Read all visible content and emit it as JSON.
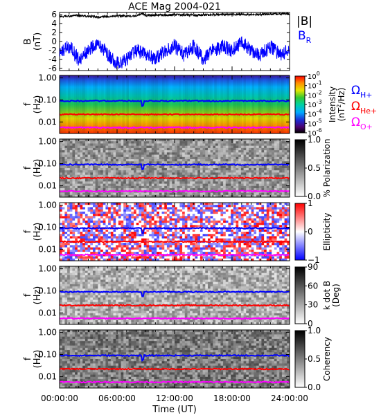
{
  "title": "ACE Mag 2004-021",
  "colors": {
    "btotal": "#000000",
    "br": "#0000ff",
    "h": "#0000ff",
    "he": "#ff0000",
    "o": "#ff00ff"
  },
  "x_axis": {
    "label": "Time (UT)",
    "ticks": [
      "00:00:00",
      "06:00:00",
      "12:00:00",
      "18:00:00",
      "24:00:00"
    ]
  },
  "panel_b": {
    "ylabel": "B",
    "yunit": "(nT)",
    "yticks": [
      "6",
      "4",
      "2",
      "0",
      "-2",
      "-4",
      "-6"
    ],
    "legend_btotal": "|B|",
    "legend_br": "B",
    "legend_br_sub": "R"
  },
  "spectral": {
    "ylabel": "f",
    "yunit": "(Hz)",
    "yticks": [
      "1.00",
      "0.10",
      "0.01"
    ]
  },
  "panels": [
    {
      "cbar_label": "Intensity",
      "cbar_unit": "(nT",
      "cbar_unit_sup": "2",
      "cbar_unit_end": "/Hz)",
      "cbar_ticks": [
        "10",
        "10",
        "10",
        "10",
        "10",
        "10",
        "10"
      ],
      "cbar_exps": [
        "0",
        "-1",
        "-2",
        "-3",
        "-4",
        "-5",
        "-6"
      ]
    },
    {
      "cbar_label": "% Polarization",
      "cbar_ticks": [
        "1.0",
        "0.5",
        "0.0"
      ]
    },
    {
      "cbar_label": "Ellipticity",
      "cbar_ticks": [
        "1",
        "0",
        "−1"
      ]
    },
    {
      "cbar_label": "k dot B",
      "cbar_label2": "(Deg)",
      "cbar_ticks": [
        "90",
        "60",
        "30",
        "0"
      ]
    },
    {
      "cbar_label": "Coherency",
      "cbar_ticks": [
        "1.0",
        "0.5",
        "0.0"
      ]
    }
  ],
  "gyro_legend": [
    {
      "symbol": "Ω",
      "sub": "H+"
    },
    {
      "symbol": "Ω",
      "sub": "He+"
    },
    {
      "symbol": "Ω",
      "sub": "O+"
    }
  ],
  "chart_data": {
    "type": "line",
    "title": "ACE Mag 2004-021",
    "x": {
      "label": "Time (UT)",
      "range": [
        0,
        24
      ],
      "ticks": [
        "00:00:00",
        "06:00:00",
        "12:00:00",
        "18:00:00",
        "24:00:00"
      ]
    },
    "series": [
      {
        "name": "|B|",
        "panel": "B",
        "x": [
          0,
          2,
          4,
          6,
          8,
          8.7,
          9,
          10,
          12,
          14,
          16,
          18,
          20,
          22,
          24
        ],
        "y": [
          5.6,
          5.8,
          5.5,
          5.7,
          5.7,
          6.3,
          5.8,
          5.9,
          6.0,
          5.9,
          6.0,
          6.1,
          6.0,
          6.1,
          6.2
        ]
      },
      {
        "name": "B",
        "panel": "B",
        "x": [
          0,
          1,
          2,
          3,
          4,
          5,
          6,
          7,
          8,
          9,
          10,
          11,
          12,
          13,
          14,
          15,
          16,
          17,
          18,
          19,
          20,
          21,
          22,
          23,
          24
        ],
        "y": [
          -3,
          -1,
          -4,
          -2,
          0,
          -3,
          -5,
          -4,
          -2,
          -3,
          -4,
          -2,
          -1,
          -3,
          -1,
          -4,
          -2,
          -1,
          -2,
          0,
          -2,
          -3,
          -1,
          -3,
          -2
        ]
      }
    ],
    "panels": [
      {
        "name": "B",
        "ylabel": "B (nT)",
        "yrange": [
          -6.5,
          6.5
        ]
      },
      {
        "name": "Intensity",
        "ylabel": "f (Hz)",
        "yscale": "log",
        "yrange": [
          0.003,
          1.3
        ],
        "colorbar": "Intensity (nT^2/Hz)",
        "crange": [
          1e-06,
          1
        ]
      },
      {
        "name": "% Polarization",
        "ylabel": "f (Hz)",
        "yscale": "log",
        "yrange": [
          0.003,
          1.3
        ],
        "colorbar": "% Polarization",
        "crange": [
          0,
          1
        ]
      },
      {
        "name": "Ellipticity",
        "ylabel": "f (Hz)",
        "yscale": "log",
        "yrange": [
          0.003,
          1.3
        ],
        "colorbar": "Ellipticity",
        "crange": [
          -1,
          1
        ]
      },
      {
        "name": "k dot B",
        "ylabel": "f (Hz)",
        "yscale": "log",
        "yrange": [
          0.003,
          1.3
        ],
        "colorbar": "k dot B (Deg)",
        "crange": [
          0,
          90
        ]
      },
      {
        "name": "Coherency",
        "ylabel": "f (Hz)",
        "yscale": "log",
        "yrange": [
          0.003,
          1.3
        ],
        "colorbar": "Coherency",
        "crange": [
          0,
          1
        ]
      }
    ],
    "gyrofrequency_lines": [
      {
        "name": "ΩH+",
        "f_hz": 0.09
      },
      {
        "name": "ΩHe+",
        "f_hz": 0.022
      },
      {
        "name": "ΩO+",
        "f_hz": 0.0056
      }
    ]
  }
}
